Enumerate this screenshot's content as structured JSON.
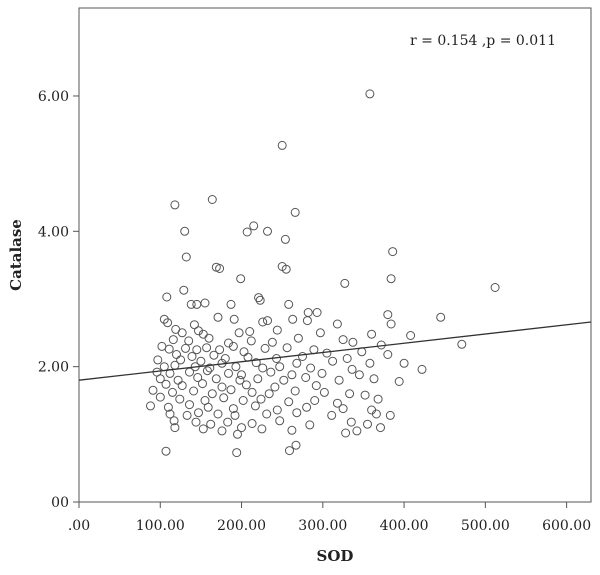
{
  "chart_data": {
    "type": "scatter",
    "title": "",
    "xlabel": "SOD",
    "ylabel": "Catalase",
    "annotation": "r = 0.154 ,p = 0.011",
    "xlim": [
      0,
      630
    ],
    "ylim": [
      0,
      7.3
    ],
    "xticks": [
      0,
      100,
      200,
      300,
      400,
      500,
      600
    ],
    "xtick_labels": [
      ".00",
      "100.00",
      "200.00",
      "300.00",
      "400.00",
      "500.00",
      "600.00"
    ],
    "yticks": [
      0,
      2,
      4,
      6
    ],
    "ytick_labels": [
      "00",
      "2.00",
      "4.00",
      "6.00"
    ],
    "grid": false,
    "fit_line": {
      "x": [
        0,
        630
      ],
      "y": [
        1.8,
        2.66
      ]
    },
    "marker": "open-circle",
    "marker_color": "#555555",
    "line_color": "#333333",
    "series": [
      {
        "points": [
          [
            358,
            6.03
          ],
          [
            250,
            5.27
          ],
          [
            164,
            4.47
          ],
          [
            118,
            4.39
          ],
          [
            266,
            4.28
          ],
          [
            215,
            4.08
          ],
          [
            130,
            4.0
          ],
          [
            207,
            3.99
          ],
          [
            232,
            4.0
          ],
          [
            254,
            3.88
          ],
          [
            386,
            3.7
          ],
          [
            132,
            3.62
          ],
          [
            169,
            3.47
          ],
          [
            173,
            3.45
          ],
          [
            250,
            3.48
          ],
          [
            255,
            3.44
          ],
          [
            199,
            3.3
          ],
          [
            384,
            3.3
          ],
          [
            512,
            3.17
          ],
          [
            327,
            3.23
          ],
          [
            129,
            3.13
          ],
          [
            108,
            3.03
          ],
          [
            221,
            3.02
          ],
          [
            223,
            2.98
          ],
          [
            138,
            2.92
          ],
          [
            145,
            2.92
          ],
          [
            155,
            2.94
          ],
          [
            187,
            2.92
          ],
          [
            258,
            2.92
          ],
          [
            293,
            2.8
          ],
          [
            282,
            2.8
          ],
          [
            380,
            2.77
          ],
          [
            445,
            2.73
          ],
          [
            105,
            2.7
          ],
          [
            171,
            2.73
          ],
          [
            191,
            2.7
          ],
          [
            263,
            2.7
          ],
          [
            281,
            2.68
          ],
          [
            318,
            2.63
          ],
          [
            384,
            2.63
          ],
          [
            109,
            2.65
          ],
          [
            142,
            2.62
          ],
          [
            226,
            2.66
          ],
          [
            232,
            2.68
          ],
          [
            119,
            2.55
          ],
          [
            147,
            2.53
          ],
          [
            127,
            2.5
          ],
          [
            153,
            2.48
          ],
          [
            197,
            2.5
          ],
          [
            210,
            2.52
          ],
          [
            244,
            2.54
          ],
          [
            297,
            2.5
          ],
          [
            360,
            2.48
          ],
          [
            408,
            2.46
          ],
          [
            116,
            2.4
          ],
          [
            135,
            2.38
          ],
          [
            160,
            2.42
          ],
          [
            184,
            2.35
          ],
          [
            212,
            2.38
          ],
          [
            238,
            2.36
          ],
          [
            270,
            2.42
          ],
          [
            325,
            2.4
          ],
          [
            337,
            2.36
          ],
          [
            372,
            2.32
          ],
          [
            471,
            2.33
          ],
          [
            102,
            2.3
          ],
          [
            111,
            2.26
          ],
          [
            131,
            2.27
          ],
          [
            145,
            2.25
          ],
          [
            157,
            2.28
          ],
          [
            173,
            2.25
          ],
          [
            190,
            2.3
          ],
          [
            203,
            2.22
          ],
          [
            229,
            2.27
          ],
          [
            256,
            2.28
          ],
          [
            289,
            2.25
          ],
          [
            305,
            2.2
          ],
          [
            348,
            2.22
          ],
          [
            380,
            2.18
          ],
          [
            120,
            2.18
          ],
          [
            139,
            2.15
          ],
          [
            166,
            2.17
          ],
          [
            180,
            2.12
          ],
          [
            208,
            2.14
          ],
          [
            243,
            2.12
          ],
          [
            275,
            2.15
          ],
          [
            330,
            2.12
          ],
          [
            97,
            2.1
          ],
          [
            125,
            2.1
          ],
          [
            150,
            2.08
          ],
          [
            176,
            2.05
          ],
          [
            218,
            2.06
          ],
          [
            268,
            2.05
          ],
          [
            312,
            2.08
          ],
          [
            358,
            2.05
          ],
          [
            400,
            2.05
          ],
          [
            105,
            2.0
          ],
          [
            118,
            2.02
          ],
          [
            143,
            2.0
          ],
          [
            161,
            1.98
          ],
          [
            193,
            2.0
          ],
          [
            226,
            1.98
          ],
          [
            247,
            2.0
          ],
          [
            285,
            1.98
          ],
          [
            336,
            1.96
          ],
          [
            422,
            1.96
          ],
          [
            96,
            1.92
          ],
          [
            112,
            1.9
          ],
          [
            136,
            1.92
          ],
          [
            158,
            1.94
          ],
          [
            184,
            1.9
          ],
          [
            200,
            1.88
          ],
          [
            236,
            1.92
          ],
          [
            262,
            1.88
          ],
          [
            299,
            1.9
          ],
          [
            345,
            1.88
          ],
          [
            100,
            1.82
          ],
          [
            122,
            1.8
          ],
          [
            146,
            1.84
          ],
          [
            169,
            1.82
          ],
          [
            198,
            1.8
          ],
          [
            220,
            1.82
          ],
          [
            252,
            1.8
          ],
          [
            279,
            1.84
          ],
          [
            320,
            1.8
          ],
          [
            363,
            1.82
          ],
          [
            394,
            1.78
          ],
          [
            107,
            1.74
          ],
          [
            127,
            1.72
          ],
          [
            152,
            1.75
          ],
          [
            176,
            1.7
          ],
          [
            206,
            1.73
          ],
          [
            241,
            1.7
          ],
          [
            292,
            1.72
          ],
          [
            91,
            1.65
          ],
          [
            115,
            1.62
          ],
          [
            141,
            1.64
          ],
          [
            164,
            1.6
          ],
          [
            187,
            1.66
          ],
          [
            213,
            1.62
          ],
          [
            234,
            1.6
          ],
          [
            266,
            1.64
          ],
          [
            302,
            1.62
          ],
          [
            333,
            1.6
          ],
          [
            352,
            1.58
          ],
          [
            100,
            1.55
          ],
          [
            124,
            1.52
          ],
          [
            155,
            1.5
          ],
          [
            178,
            1.54
          ],
          [
            202,
            1.5
          ],
          [
            224,
            1.52
          ],
          [
            258,
            1.48
          ],
          [
            290,
            1.5
          ],
          [
            318,
            1.46
          ],
          [
            368,
            1.52
          ],
          [
            88,
            1.42
          ],
          [
            110,
            1.4
          ],
          [
            136,
            1.44
          ],
          [
            159,
            1.4
          ],
          [
            190,
            1.38
          ],
          [
            217,
            1.42
          ],
          [
            244,
            1.36
          ],
          [
            280,
            1.4
          ],
          [
            325,
            1.38
          ],
          [
            360,
            1.36
          ],
          [
            112,
            1.3
          ],
          [
            133,
            1.28
          ],
          [
            147,
            1.32
          ],
          [
            171,
            1.3
          ],
          [
            192,
            1.28
          ],
          [
            231,
            1.3
          ],
          [
            268,
            1.32
          ],
          [
            311,
            1.28
          ],
          [
            366,
            1.3
          ],
          [
            383,
            1.28
          ],
          [
            117,
            1.2
          ],
          [
            144,
            1.18
          ],
          [
            162,
            1.15
          ],
          [
            183,
            1.18
          ],
          [
            213,
            1.16
          ],
          [
            247,
            1.2
          ],
          [
            284,
            1.14
          ],
          [
            335,
            1.18
          ],
          [
            355,
            1.15
          ],
          [
            118,
            1.1
          ],
          [
            153,
            1.08
          ],
          [
            176,
            1.05
          ],
          [
            200,
            1.1
          ],
          [
            225,
            1.08
          ],
          [
            262,
            1.06
          ],
          [
            328,
            1.02
          ],
          [
            342,
            1.05
          ],
          [
            371,
            1.1
          ],
          [
            195,
            1.0
          ],
          [
            259,
            0.76
          ],
          [
            107,
            0.75
          ],
          [
            194,
            0.73
          ],
          [
            267,
            0.84
          ]
        ]
      }
    ]
  }
}
